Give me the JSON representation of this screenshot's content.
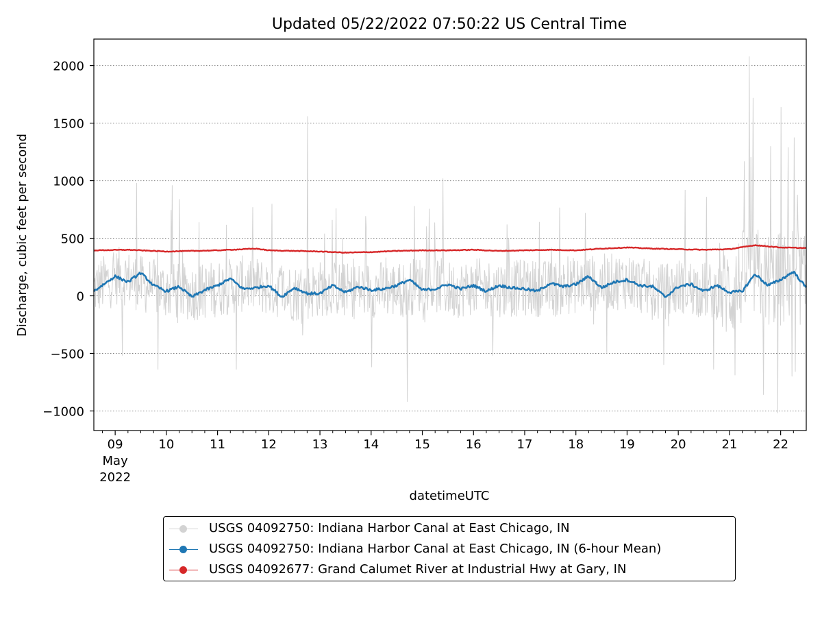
{
  "chart_data": {
    "type": "line",
    "title": "Updated 05/22/2022 07:50:22 US Central Time",
    "xlabel": "datetimeUTC",
    "ylabel": "Discharge, cubic feet per second",
    "xlim": [
      "2022-05-08T14:00",
      "2022-05-22T12:00"
    ],
    "ylim": [
      -1170,
      2230
    ],
    "yticks": [
      -1000,
      -500,
      0,
      500,
      1000,
      1500,
      2000
    ],
    "ytick_labels": [
      "−1000",
      "−500",
      "0",
      "500",
      "1000",
      "1500",
      "2000"
    ],
    "xticks": [
      {
        "date": "2022-05-09",
        "label": "09"
      },
      {
        "date": "2022-05-10",
        "label": "10"
      },
      {
        "date": "2022-05-11",
        "label": "11"
      },
      {
        "date": "2022-05-12",
        "label": "12"
      },
      {
        "date": "2022-05-13",
        "label": "13"
      },
      {
        "date": "2022-05-14",
        "label": "14"
      },
      {
        "date": "2022-05-15",
        "label": "15"
      },
      {
        "date": "2022-05-16",
        "label": "16"
      },
      {
        "date": "2022-05-17",
        "label": "17"
      },
      {
        "date": "2022-05-18",
        "label": "18"
      },
      {
        "date": "2022-05-19",
        "label": "19"
      },
      {
        "date": "2022-05-20",
        "label": "20"
      },
      {
        "date": "2022-05-21",
        "label": "21"
      },
      {
        "date": "2022-05-22",
        "label": "22"
      }
    ],
    "xtick_sublabels": [
      "May",
      "2022"
    ],
    "grid": "horizontal-dotted",
    "legend_position": "below",
    "series": [
      {
        "name": "USGS 04092750: Indiana Harbor Canal at East Chicago, IN",
        "color": "#d3d3d3",
        "style": "noisy-raw",
        "x": [
          "2022-05-08T14:00",
          "2022-05-09T02:00",
          "2022-05-09T14:00",
          "2022-05-10T02:00",
          "2022-05-10T14:00",
          "2022-05-11T02:00",
          "2022-05-11T14:00",
          "2022-05-12T02:00",
          "2022-05-12T14:00",
          "2022-05-13T02:00",
          "2022-05-13T14:00",
          "2022-05-14T02:00",
          "2022-05-14T14:00",
          "2022-05-15T02:00",
          "2022-05-15T14:00",
          "2022-05-16T02:00",
          "2022-05-16T14:00",
          "2022-05-17T02:00",
          "2022-05-17T14:00",
          "2022-05-18T02:00",
          "2022-05-18T14:00",
          "2022-05-19T02:00",
          "2022-05-19T14:00",
          "2022-05-20T02:00",
          "2022-05-20T14:00",
          "2022-05-21T02:00",
          "2022-05-21T10:00",
          "2022-05-21T14:00",
          "2022-05-22T02:00",
          "2022-05-22T06:00",
          "2022-05-22T12:00"
        ],
        "values": [
          60,
          180,
          90,
          40,
          30,
          70,
          110,
          60,
          20,
          70,
          40,
          60,
          50,
          120,
          50,
          80,
          60,
          70,
          60,
          100,
          120,
          130,
          20,
          90,
          40,
          40,
          1550,
          160,
          130,
          1640,
          80
        ],
        "range": [
          -1020,
          2080
        ]
      },
      {
        "name": "USGS 04092750: Indiana Harbor Canal at East Chicago, IN (6-hour Mean)",
        "color": "#1f77b4",
        "x": [
          "2022-05-08T14:00",
          "2022-05-09T00:00",
          "2022-05-09T06:00",
          "2022-05-09T12:00",
          "2022-05-09T18:00",
          "2022-05-10T00:00",
          "2022-05-10T06:00",
          "2022-05-10T12:00",
          "2022-05-10T18:00",
          "2022-05-11T00:00",
          "2022-05-11T06:00",
          "2022-05-11T12:00",
          "2022-05-11T18:00",
          "2022-05-12T00:00",
          "2022-05-12T06:00",
          "2022-05-12T12:00",
          "2022-05-12T18:00",
          "2022-05-13T00:00",
          "2022-05-13T06:00",
          "2022-05-13T12:00",
          "2022-05-13T18:00",
          "2022-05-14T00:00",
          "2022-05-14T06:00",
          "2022-05-14T12:00",
          "2022-05-14T18:00",
          "2022-05-15T00:00",
          "2022-05-15T06:00",
          "2022-05-15T12:00",
          "2022-05-15T18:00",
          "2022-05-16T00:00",
          "2022-05-16T06:00",
          "2022-05-16T12:00",
          "2022-05-16T18:00",
          "2022-05-17T00:00",
          "2022-05-17T06:00",
          "2022-05-17T12:00",
          "2022-05-17T18:00",
          "2022-05-18T00:00",
          "2022-05-18T06:00",
          "2022-05-18T12:00",
          "2022-05-18T18:00",
          "2022-05-19T00:00",
          "2022-05-19T06:00",
          "2022-05-19T12:00",
          "2022-05-19T18:00",
          "2022-05-20T00:00",
          "2022-05-20T06:00",
          "2022-05-20T12:00",
          "2022-05-20T18:00",
          "2022-05-21T00:00",
          "2022-05-21T06:00",
          "2022-05-21T12:00",
          "2022-05-21T18:00",
          "2022-05-22T00:00",
          "2022-05-22T06:00",
          "2022-05-22T12:00"
        ],
        "values": [
          40,
          170,
          120,
          200,
          90,
          40,
          80,
          -10,
          50,
          90,
          150,
          60,
          70,
          90,
          -10,
          70,
          20,
          20,
          90,
          30,
          80,
          50,
          60,
          90,
          140,
          50,
          60,
          100,
          60,
          90,
          40,
          90,
          70,
          60,
          40,
          110,
          80,
          100,
          170,
          70,
          120,
          140,
          90,
          80,
          -10,
          80,
          100,
          40,
          90,
          30,
          40,
          190,
          90,
          140,
          210,
          70
        ]
      },
      {
        "name": "USGS 04092677: Grand Calumet River at Industrial Hwy at Gary, IN",
        "color": "#d62728",
        "x": [
          "2022-05-08T14:00",
          "2022-05-09T06:00",
          "2022-05-10T00:00",
          "2022-05-10T12:00",
          "2022-05-11T00:00",
          "2022-05-11T18:00",
          "2022-05-12T00:00",
          "2022-05-12T12:00",
          "2022-05-13T00:00",
          "2022-05-13T12:00",
          "2022-05-14T00:00",
          "2022-05-14T12:00",
          "2022-05-15T00:00",
          "2022-05-15T12:00",
          "2022-05-16T00:00",
          "2022-05-16T12:00",
          "2022-05-17T00:00",
          "2022-05-17T12:00",
          "2022-05-18T00:00",
          "2022-05-18T12:00",
          "2022-05-19T00:00",
          "2022-05-19T12:00",
          "2022-05-20T00:00",
          "2022-05-20T12:00",
          "2022-05-21T00:00",
          "2022-05-21T12:00",
          "2022-05-22T00:00",
          "2022-05-22T12:00"
        ],
        "values": [
          395,
          400,
          385,
          390,
          395,
          410,
          395,
          390,
          385,
          375,
          380,
          390,
          395,
          395,
          400,
          390,
          395,
          400,
          395,
          410,
          420,
          410,
          405,
          400,
          405,
          440,
          420,
          415
        ]
      }
    ]
  }
}
